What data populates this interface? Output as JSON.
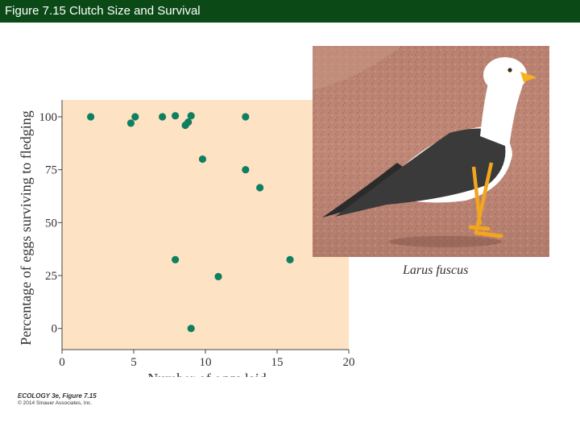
{
  "header": {
    "title": "Figure 7.15  Clutch Size and Survival"
  },
  "chart_data": {
    "type": "scatter",
    "xlabel": "Number of eggs laid",
    "ylabel": "Percentage of eggs surviving to fledging",
    "xlim": [
      0,
      20
    ],
    "ylim": [
      -10,
      108
    ],
    "xticks": [
      "0",
      "5",
      "10",
      "15",
      "20"
    ],
    "yticks": [
      "0",
      "25",
      "50",
      "75",
      "100"
    ],
    "point_color": "#0f7f60",
    "plot_background": "#fde3c3",
    "points": [
      {
        "x": 2,
        "y": 100
      },
      {
        "x": 4.8,
        "y": 97
      },
      {
        "x": 5.1,
        "y": 100
      },
      {
        "x": 7,
        "y": 100
      },
      {
        "x": 7.9,
        "y": 100.5
      },
      {
        "x": 8.6,
        "y": 96
      },
      {
        "x": 8.8,
        "y": 97.5
      },
      {
        "x": 9,
        "y": 100.5
      },
      {
        "x": 9.8,
        "y": 80
      },
      {
        "x": 12.8,
        "y": 100
      },
      {
        "x": 12.8,
        "y": 75
      },
      {
        "x": 13.8,
        "y": 66.5
      },
      {
        "x": 7.9,
        "y": 32.5
      },
      {
        "x": 10.9,
        "y": 24.5
      },
      {
        "x": 9,
        "y": 0
      },
      {
        "x": 15.9,
        "y": 32.5
      }
    ]
  },
  "photo": {
    "caption": "Larus fuscus"
  },
  "credit": {
    "line1": "ECOLOGY 3e, Figure 7.15",
    "line2": "© 2014 Sinauer Associates, Inc."
  }
}
